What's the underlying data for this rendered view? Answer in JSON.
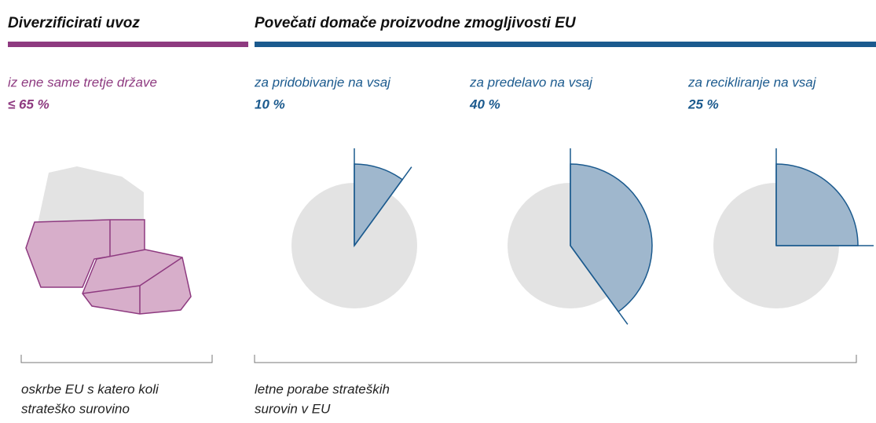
{
  "sections": [
    {
      "title": "Diverzificirati uvoz",
      "color": "#8e3a80"
    },
    {
      "title": "Povečati domače proizvodne zmogljivosti EU",
      "color": "#1b5a8e"
    }
  ],
  "import_target": {
    "label": "iz ene same tretje države",
    "value_label": "≤ 65 %"
  },
  "targets": [
    {
      "label": "za pridobivanje na vsaj",
      "value": 10,
      "value_label": "10 %"
    },
    {
      "label": "za predelavo na vsaj",
      "value": 40,
      "value_label": "40 %"
    },
    {
      "label": "za recikliranje na vsaj",
      "value": 25,
      "value_label": "25 %"
    }
  ],
  "footnotes": [
    {
      "lines": [
        "oskrbe EU s katero koli",
        "strateško surovino"
      ]
    },
    {
      "lines": [
        "letne porabe strateških",
        "surovin v EU"
      ]
    }
  ]
}
